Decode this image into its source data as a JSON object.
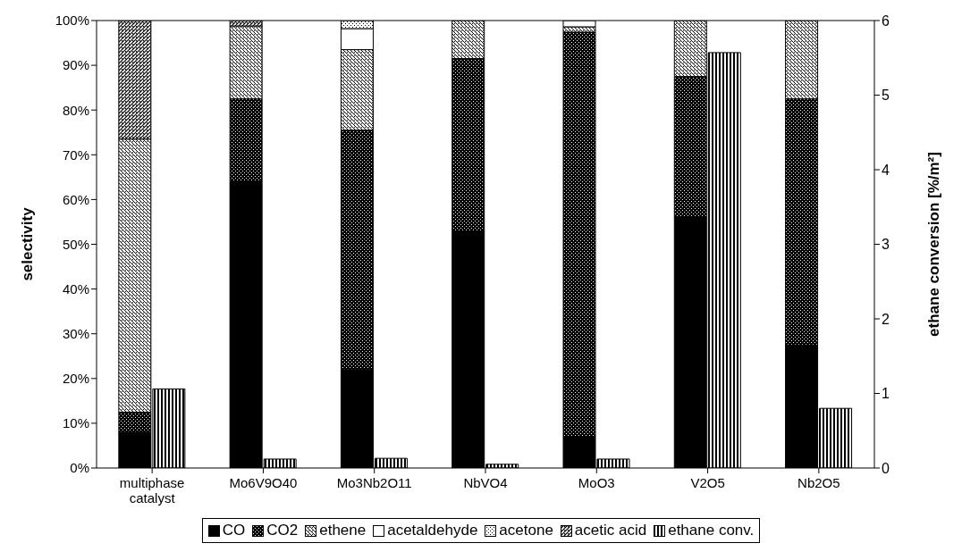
{
  "chart_data": {
    "type": "bar",
    "stacked": true,
    "ylabel": "selectivity",
    "y2label": "ethane conversion [%/m²]",
    "categories": [
      "multiphase catalyst",
      "Mo6V9O40",
      "Mo3Nb2O11",
      "NbVO4",
      "MoO3",
      "V2O5",
      "Nb2O5"
    ],
    "series": [
      {
        "name": "CO",
        "color": "#000000",
        "values": [
          8,
          64,
          22,
          53,
          7,
          56,
          27.5
        ]
      },
      {
        "name": "CO2",
        "color": "#000000",
        "values": [
          4.5,
          18.5,
          53.5,
          38.5,
          90.4,
          31.5,
          55
        ]
      },
      {
        "name": "ethene",
        "color": "#000000",
        "values": [
          61,
          16.3,
          18,
          8.5,
          1.2,
          12.5,
          17.5
        ]
      },
      {
        "name": "acetaldehyde",
        "color": "#000000",
        "values": [
          0,
          0,
          4.7,
          0,
          1.4,
          0,
          0
        ]
      },
      {
        "name": "acetone",
        "color": "#000000",
        "values": [
          0,
          0,
          1.8,
          0,
          0,
          0,
          0
        ]
      },
      {
        "name": "acetic acid",
        "color": "#000000",
        "values": [
          26.5,
          1.2,
          0,
          0,
          0,
          0,
          0
        ]
      },
      {
        "name": "ethane conv.",
        "color": "#000000",
        "axis": "y2",
        "values": [
          1.06,
          0.12,
          0.13,
          0.05,
          0.12,
          5.57,
          0.8
        ]
      }
    ],
    "ylim": [
      0,
      100
    ],
    "yticks": [
      {
        "value": 0,
        "label": "0%"
      },
      {
        "value": 10,
        "label": "10%"
      },
      {
        "value": 20,
        "label": "20%"
      },
      {
        "value": 30,
        "label": "30%"
      },
      {
        "value": 40,
        "label": "40%"
      },
      {
        "value": 50,
        "label": "50%"
      },
      {
        "value": 60,
        "label": "60%"
      },
      {
        "value": 70,
        "label": "70%"
      },
      {
        "value": 80,
        "label": "80%"
      },
      {
        "value": 90,
        "label": "90%"
      },
      {
        "value": 100,
        "label": "100%"
      }
    ],
    "y2lim": [
      0,
      6
    ],
    "y2ticks": [
      0,
      1,
      2,
      3,
      4,
      5,
      6
    ],
    "grid": false,
    "legend": "bottom"
  }
}
